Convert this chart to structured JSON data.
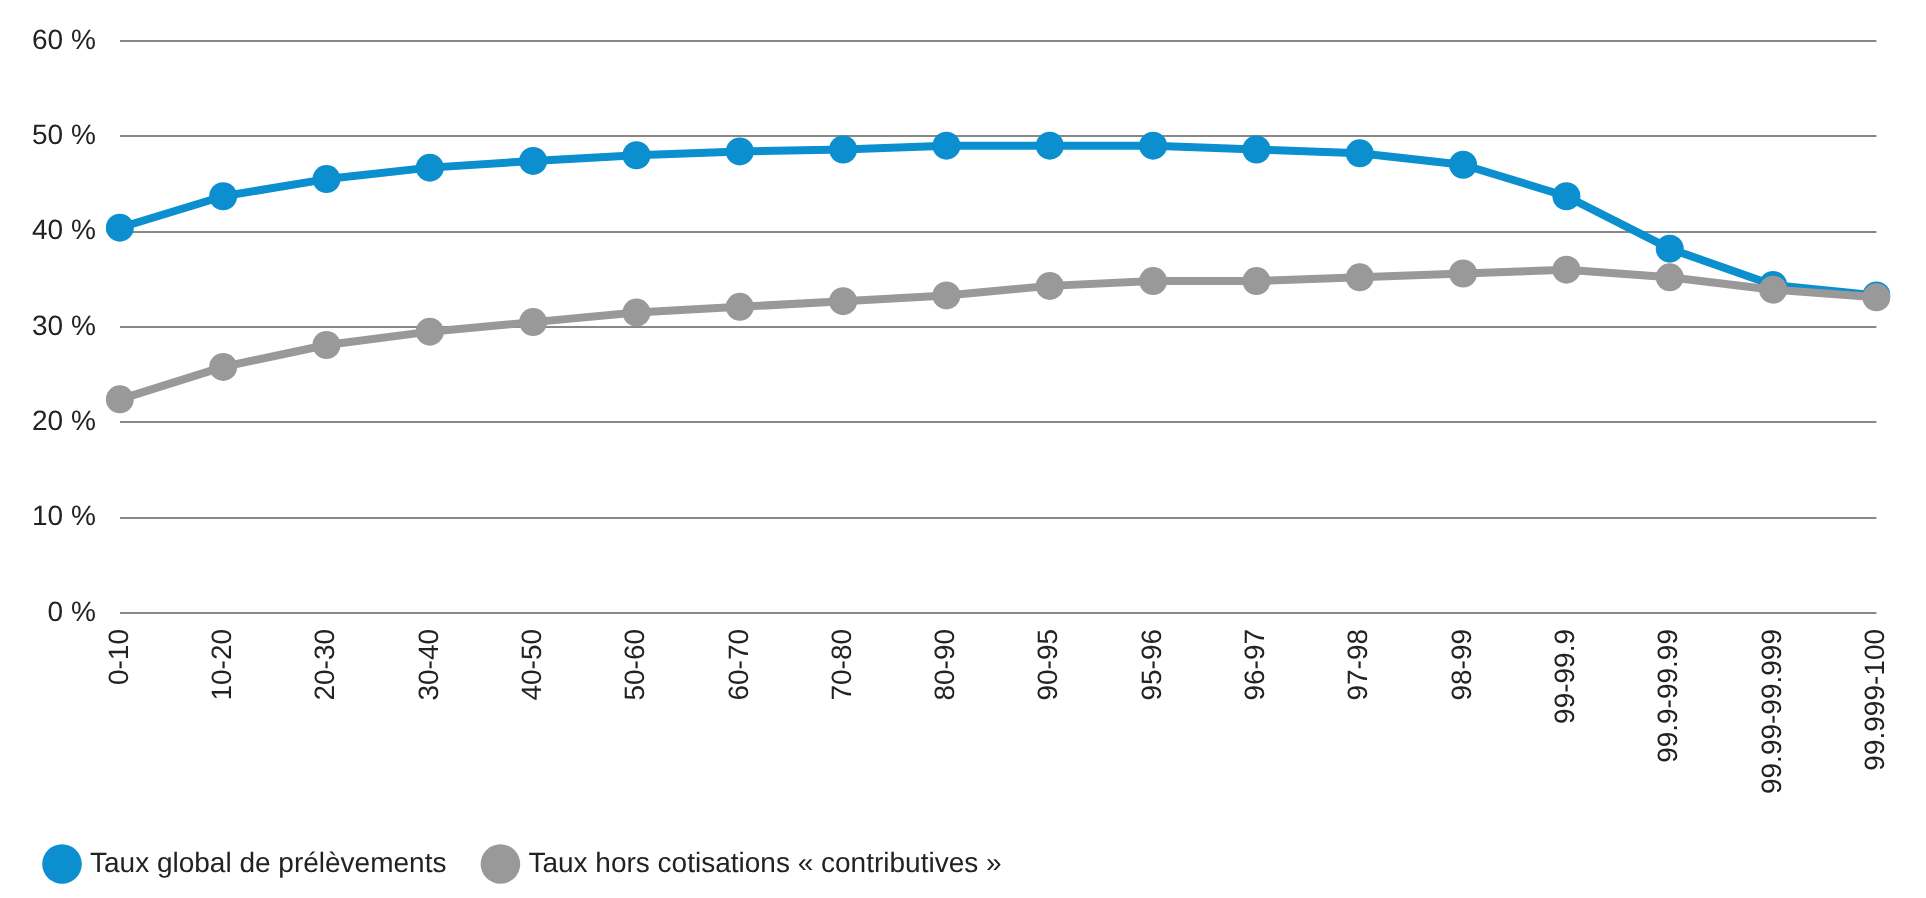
{
  "chart_data": {
    "type": "line",
    "categories": [
      "0-10",
      "10-20",
      "20-30",
      "30-40",
      "40-50",
      "50-60",
      "60-70",
      "70-80",
      "80-90",
      "90-95",
      "95-96",
      "96-97",
      "97-98",
      "98-99",
      "99-99.9",
      "99.9-99.99",
      "99.99-99.999",
      "99.999-100"
    ],
    "series": [
      {
        "name": "Taux global de prélèvements",
        "color": "#0b8fce",
        "values": [
          40.4,
          43.7,
          45.5,
          46.7,
          47.4,
          48.0,
          48.4,
          48.6,
          49.0,
          49.0,
          49.0,
          48.6,
          48.2,
          47.0,
          43.7,
          38.2,
          34.4,
          33.3
        ]
      },
      {
        "name": "Taux hors cotisations « contributives »",
        "color": "#999999",
        "values": [
          22.4,
          25.8,
          28.1,
          29.5,
          30.5,
          31.5,
          32.1,
          32.7,
          33.3,
          34.3,
          34.8,
          34.8,
          35.2,
          35.6,
          36.0,
          35.2,
          33.9,
          33.1
        ]
      }
    ],
    "ylim": [
      0,
      60
    ],
    "yticks": [
      {
        "value": 0,
        "label": "0 %"
      },
      {
        "value": 10,
        "label": "10 %"
      },
      {
        "value": 20,
        "label": "20 %"
      },
      {
        "value": 30,
        "label": "30 %"
      },
      {
        "value": 40,
        "label": "40 %"
      },
      {
        "value": 50,
        "label": "50 %"
      },
      {
        "value": 60,
        "label": "60 %"
      }
    ],
    "grid": "y",
    "legend": "bottom left",
    "marker": "circle",
    "line_style": "solid"
  }
}
